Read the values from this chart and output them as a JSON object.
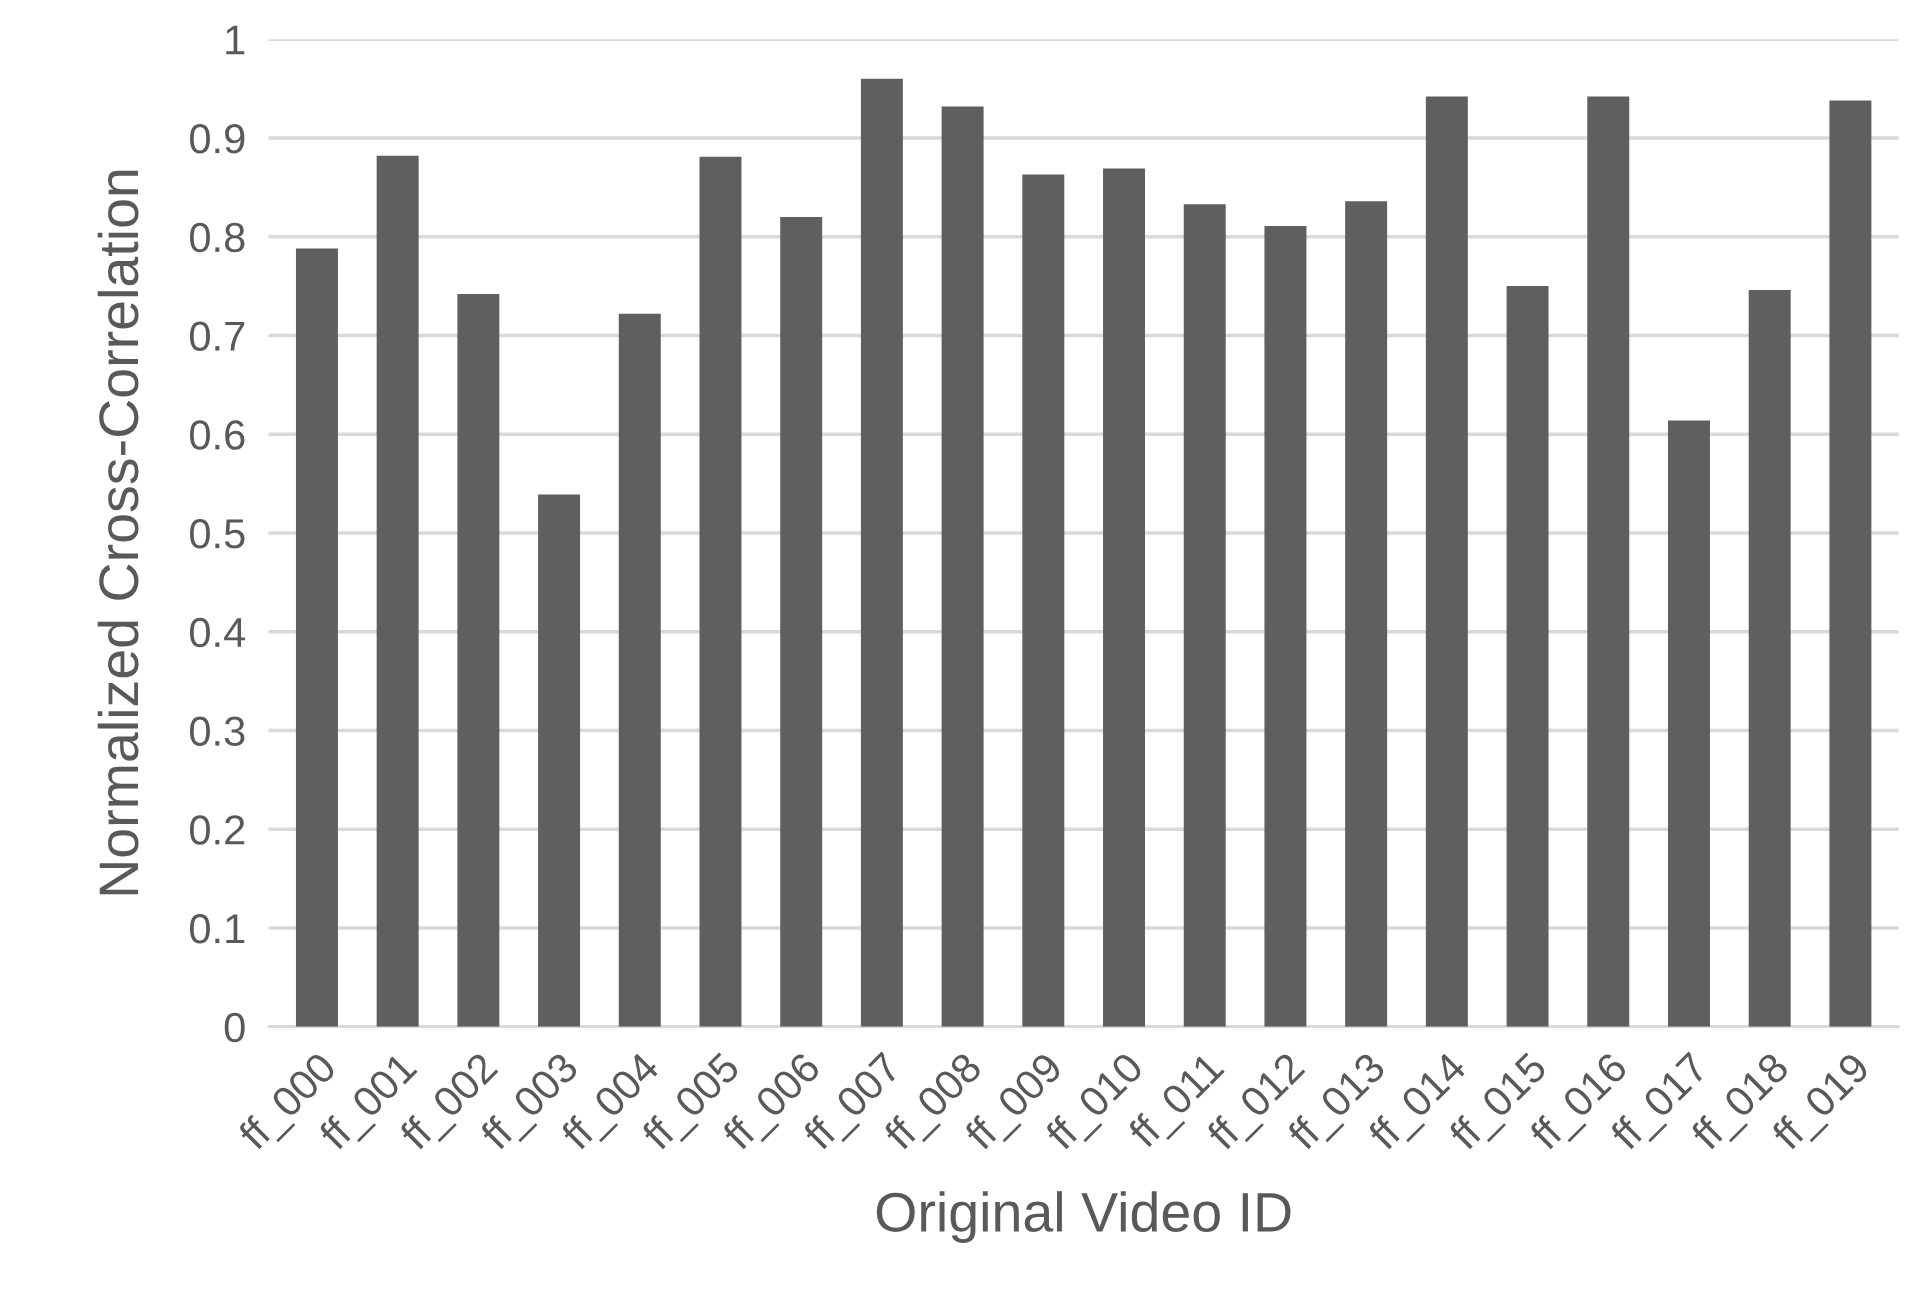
{
  "chart_data": {
    "type": "bar",
    "xlabel": "Original Video ID",
    "ylabel": "Normalized Cross-Correlation",
    "categories": [
      "ff_000",
      "ff_001",
      "ff_002",
      "ff_003",
      "ff_004",
      "ff_005",
      "ff_006",
      "ff_007",
      "ff_008",
      "ff_009",
      "ff_010",
      "ff_011",
      "ff_012",
      "ff_013",
      "ff_014",
      "ff_015",
      "ff_016",
      "ff_017",
      "ff_018",
      "ff_019"
    ],
    "values": [
      0.788,
      0.882,
      0.742,
      0.539,
      0.722,
      0.881,
      0.82,
      0.96,
      0.932,
      0.863,
      0.869,
      0.833,
      0.811,
      0.836,
      0.942,
      0.75,
      0.942,
      0.614,
      0.746,
      0.938
    ],
    "color": "#5f5f5f",
    "ylim": [
      0,
      1
    ],
    "yticks": [
      0,
      0.1,
      0.2,
      0.3,
      0.4,
      0.5,
      0.6,
      0.7,
      0.8,
      0.9,
      {
        "value": 1,
        "label": "1"
      }
    ],
    "grid": "y",
    "legend": false
  }
}
